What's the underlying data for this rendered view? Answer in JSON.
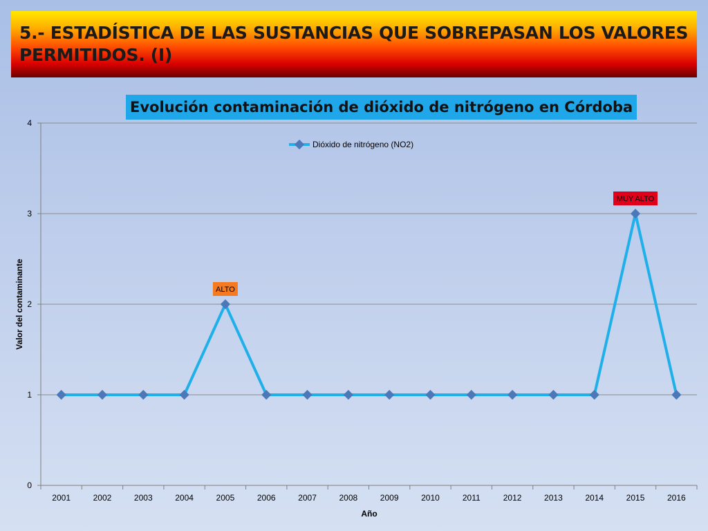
{
  "banner": {
    "line1": "5.- ESTADÍSTICA DE LAS SUSTANCIAS QUE SOBREPASAN LOS VALORES",
    "line2": "PERMITIDOS. (I)"
  },
  "colors": {
    "series": "#1fb0ea",
    "marker": "#4a78b8",
    "alto_badge": "#f57a20",
    "muy_alto_badge": "#e0001b",
    "title_bg": "#1fa7ea"
  },
  "chart_data": {
    "type": "line",
    "title": "Evolución contaminación de dióxido de nitrógeno en Córdoba",
    "xlabel": "Año",
    "ylabel": "Valor del contaminante",
    "categories": [
      "2001",
      "2002",
      "2003",
      "2004",
      "2005",
      "2006",
      "2007",
      "2008",
      "2009",
      "2010",
      "2011",
      "2012",
      "2013",
      "2014",
      "2015",
      "2016"
    ],
    "series": [
      {
        "name": "Dióxido de nitrógeno (NO2)",
        "values": [
          1,
          1,
          1,
          1,
          2,
          1,
          1,
          1,
          1,
          1,
          1,
          1,
          1,
          1,
          3,
          1
        ]
      }
    ],
    "ylim": [
      0,
      4
    ],
    "yticks": [
      0,
      1,
      2,
      3,
      4
    ],
    "grid": true,
    "legend": "top-center",
    "annotations": [
      {
        "category": "2005",
        "text": "ALTO",
        "color_key": "alto_badge"
      },
      {
        "category": "2015",
        "text": "MUY ALTO",
        "color_key": "muy_alto_badge"
      }
    ]
  }
}
